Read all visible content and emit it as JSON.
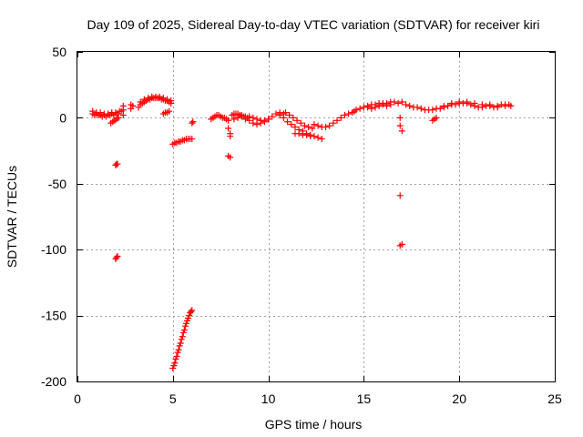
{
  "chart_data": {
    "type": "scatter",
    "title": "Day 109 of 2025, Sidereal Day-to-day VTEC variation (SDTVAR) for receiver kiri",
    "xlabel": "GPS time / hours",
    "ylabel": "SDTVAR / TECUs",
    "xlim": [
      0,
      25
    ],
    "ylim": [
      -200,
      50
    ],
    "xticks": [
      0,
      5,
      10,
      15,
      20,
      25
    ],
    "yticks": [
      -200,
      -150,
      -100,
      -50,
      0,
      50
    ],
    "xtick_labels": [
      "0",
      "5",
      "10",
      "15",
      "20",
      "25"
    ],
    "ytick_labels": [
      "-200",
      "-150",
      "-100",
      "-50",
      "0",
      "50"
    ],
    "grid": true,
    "marker": "+",
    "color": "#ff0000",
    "series": [
      {
        "name": "SDTVAR",
        "points": [
          [
            0.8,
            3
          ],
          [
            0.9,
            2
          ],
          [
            1.0,
            3
          ],
          [
            1.1,
            2
          ],
          [
            1.2,
            2
          ],
          [
            1.3,
            1
          ],
          [
            1.4,
            2
          ],
          [
            1.5,
            1
          ],
          [
            1.6,
            2
          ],
          [
            1.7,
            2
          ],
          [
            1.8,
            3
          ],
          [
            1.9,
            2
          ],
          [
            0.8,
            5
          ],
          [
            1.0,
            4
          ],
          [
            1.2,
            4
          ],
          [
            1.4,
            3
          ],
          [
            1.6,
            3
          ],
          [
            1.8,
            4
          ],
          [
            1.75,
            -4
          ],
          [
            1.85,
            -3
          ],
          [
            1.95,
            -2
          ],
          [
            2.05,
            -1
          ],
          [
            2.15,
            0
          ],
          [
            2.0,
            4
          ],
          [
            2.1,
            3
          ],
          [
            2.2,
            5
          ],
          [
            2.3,
            5
          ],
          [
            2.4,
            2
          ],
          [
            2.4,
            6
          ],
          [
            2.4,
            9
          ],
          [
            2.8,
            7
          ],
          [
            2.8,
            10
          ],
          [
            2.9,
            9
          ],
          [
            2.0,
            -36
          ],
          [
            2.05,
            -35
          ],
          [
            2.1,
            -35
          ],
          [
            2.0,
            -107
          ],
          [
            2.05,
            -106
          ],
          [
            2.1,
            -105
          ],
          [
            3.2,
            8
          ],
          [
            3.3,
            10
          ],
          [
            3.4,
            11
          ],
          [
            3.5,
            12
          ],
          [
            3.6,
            13
          ],
          [
            3.7,
            14
          ],
          [
            3.8,
            14
          ],
          [
            3.9,
            15
          ],
          [
            4.0,
            15
          ],
          [
            4.1,
            15
          ],
          [
            4.2,
            15
          ],
          [
            4.3,
            15
          ],
          [
            4.4,
            14
          ],
          [
            4.5,
            14
          ],
          [
            4.6,
            13
          ],
          [
            4.7,
            13
          ],
          [
            4.8,
            12
          ],
          [
            4.9,
            11
          ],
          [
            3.3,
            12
          ],
          [
            3.5,
            14
          ],
          [
            3.7,
            15
          ],
          [
            3.9,
            16
          ],
          [
            4.1,
            16
          ],
          [
            4.3,
            16
          ],
          [
            4.5,
            15
          ],
          [
            4.7,
            14
          ],
          [
            4.9,
            13
          ],
          [
            4.5,
            3
          ],
          [
            4.6,
            4
          ],
          [
            4.7,
            4
          ],
          [
            4.8,
            5
          ],
          [
            5.0,
            -20
          ],
          [
            5.1,
            -19
          ],
          [
            5.2,
            -19
          ],
          [
            5.3,
            -18
          ],
          [
            5.4,
            -18
          ],
          [
            5.5,
            -17
          ],
          [
            5.6,
            -17
          ],
          [
            5.7,
            -16
          ],
          [
            5.8,
            -16
          ],
          [
            5.9,
            -16
          ],
          [
            6.0,
            -16
          ],
          [
            5.0,
            -190
          ],
          [
            5.05,
            -188
          ],
          [
            5.1,
            -186
          ],
          [
            5.15,
            -183
          ],
          [
            5.2,
            -181
          ],
          [
            5.25,
            -178
          ],
          [
            5.3,
            -176
          ],
          [
            5.35,
            -173
          ],
          [
            5.4,
            -171
          ],
          [
            5.45,
            -168
          ],
          [
            5.5,
            -166
          ],
          [
            5.55,
            -163
          ],
          [
            5.6,
            -161
          ],
          [
            5.65,
            -158
          ],
          [
            5.7,
            -156
          ],
          [
            5.75,
            -154
          ],
          [
            5.8,
            -152
          ],
          [
            5.85,
            -150
          ],
          [
            5.9,
            -148
          ],
          [
            5.95,
            -147
          ],
          [
            6.0,
            -146
          ],
          [
            6.0,
            -4
          ],
          [
            6.05,
            -3
          ],
          [
            7.0,
            -1
          ],
          [
            7.1,
            0
          ],
          [
            7.2,
            1
          ],
          [
            7.3,
            2
          ],
          [
            7.4,
            2
          ],
          [
            7.5,
            1
          ],
          [
            7.6,
            0
          ],
          [
            7.7,
            0
          ],
          [
            7.8,
            -1
          ],
          [
            7.9,
            -2
          ],
          [
            7.9,
            -8
          ],
          [
            8.0,
            -12
          ],
          [
            8.0,
            -14
          ],
          [
            7.9,
            -29
          ],
          [
            8.0,
            -30
          ],
          [
            8.1,
            2
          ],
          [
            8.2,
            3
          ],
          [
            8.3,
            3
          ],
          [
            8.4,
            3
          ],
          [
            8.5,
            2
          ],
          [
            8.6,
            2
          ],
          [
            8.7,
            1
          ],
          [
            8.8,
            1
          ],
          [
            8.9,
            0
          ],
          [
            8.2,
            -1
          ],
          [
            8.4,
            0
          ],
          [
            8.6,
            1
          ],
          [
            8.8,
            -1
          ],
          [
            9.0,
            -2
          ],
          [
            9.2,
            -4
          ],
          [
            9.4,
            -5
          ],
          [
            9.6,
            -4
          ],
          [
            9.8,
            -3
          ],
          [
            10.0,
            -1
          ],
          [
            10.2,
            1
          ],
          [
            10.4,
            3
          ],
          [
            10.6,
            4
          ],
          [
            10.8,
            3
          ],
          [
            9.0,
            1
          ],
          [
            9.2,
            0
          ],
          [
            9.4,
            -1
          ],
          [
            9.6,
            -2
          ],
          [
            9.8,
            -2
          ],
          [
            10.0,
            -1
          ],
          [
            10.6,
            2
          ],
          [
            10.8,
            0
          ],
          [
            11.0,
            -3
          ],
          [
            11.2,
            -5
          ],
          [
            11.4,
            -7
          ],
          [
            11.6,
            -9
          ],
          [
            11.8,
            -10
          ],
          [
            12.0,
            -12
          ],
          [
            12.2,
            -13
          ],
          [
            12.4,
            -14
          ],
          [
            12.6,
            -15
          ],
          [
            12.8,
            -16
          ],
          [
            10.9,
            4
          ],
          [
            11.1,
            2
          ],
          [
            11.3,
            0
          ],
          [
            11.5,
            -2
          ],
          [
            11.7,
            -4
          ],
          [
            11.9,
            -6
          ],
          [
            12.1,
            -7
          ],
          [
            12.3,
            -8
          ],
          [
            11.4,
            -12
          ],
          [
            11.6,
            -12
          ],
          [
            11.8,
            -13
          ],
          [
            12.0,
            -13
          ],
          [
            12.2,
            -14
          ],
          [
            12.4,
            -5
          ],
          [
            12.6,
            -6
          ],
          [
            12.8,
            -7
          ],
          [
            13.0,
            -7
          ],
          [
            13.2,
            -6
          ],
          [
            13.4,
            -4
          ],
          [
            13.6,
            -2
          ],
          [
            13.8,
            0
          ],
          [
            14.0,
            2
          ],
          [
            14.2,
            3
          ],
          [
            14.4,
            4
          ],
          [
            14.5,
            5
          ],
          [
            14.6,
            6
          ],
          [
            14.8,
            7
          ],
          [
            15.0,
            8
          ],
          [
            15.2,
            9
          ],
          [
            15.4,
            10
          ],
          [
            15.6,
            10
          ],
          [
            15.8,
            11
          ],
          [
            16.0,
            11
          ],
          [
            16.2,
            11
          ],
          [
            16.4,
            12
          ],
          [
            16.6,
            12
          ],
          [
            16.8,
            11
          ],
          [
            15.2,
            8
          ],
          [
            15.4,
            7
          ],
          [
            15.6,
            8
          ],
          [
            15.8,
            9
          ],
          [
            16.0,
            10
          ],
          [
            16.2,
            9
          ],
          [
            16.4,
            10
          ],
          [
            16.9,
            0
          ],
          [
            16.9,
            -6
          ],
          [
            17.0,
            -10
          ],
          [
            16.9,
            -59
          ],
          [
            16.9,
            -97
          ],
          [
            17.0,
            -96
          ],
          [
            17.0,
            12
          ],
          [
            17.2,
            10
          ],
          [
            17.4,
            9
          ],
          [
            17.6,
            8
          ],
          [
            17.8,
            8
          ],
          [
            18.0,
            7
          ],
          [
            18.2,
            6
          ],
          [
            18.4,
            6
          ],
          [
            18.6,
            6
          ],
          [
            18.8,
            7
          ],
          [
            18.6,
            -2
          ],
          [
            18.7,
            -1
          ],
          [
            18.8,
            0
          ],
          [
            19.0,
            7
          ],
          [
            19.2,
            8
          ],
          [
            19.4,
            9
          ],
          [
            19.6,
            10
          ],
          [
            19.8,
            10
          ],
          [
            20.0,
            11
          ],
          [
            20.2,
            11
          ],
          [
            20.4,
            11
          ],
          [
            20.6,
            10
          ],
          [
            20.8,
            9
          ],
          [
            19.2,
            9
          ],
          [
            19.6,
            11
          ],
          [
            20.0,
            12
          ],
          [
            20.4,
            12
          ],
          [
            20.8,
            11
          ],
          [
            21.0,
            8
          ],
          [
            21.2,
            8
          ],
          [
            21.4,
            9
          ],
          [
            21.6,
            9
          ],
          [
            21.8,
            8
          ],
          [
            22.0,
            9
          ],
          [
            22.2,
            10
          ],
          [
            22.4,
            10
          ],
          [
            22.6,
            10
          ],
          [
            22.7,
            9
          ],
          [
            21.2,
            10
          ],
          [
            21.6,
            10
          ],
          [
            22.0,
            8
          ],
          [
            22.4,
            9
          ]
        ]
      }
    ]
  }
}
